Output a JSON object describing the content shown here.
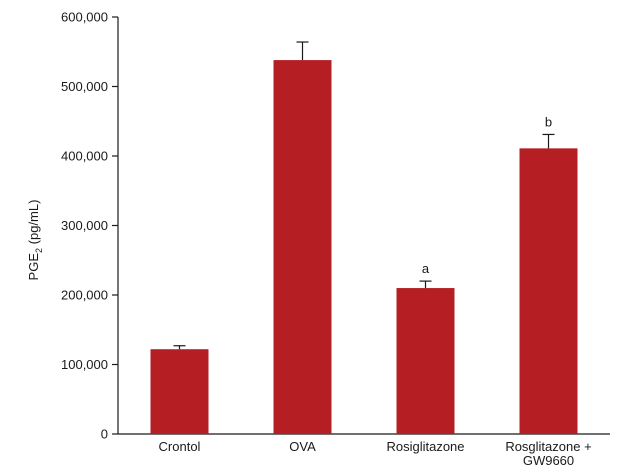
{
  "chart_data": {
    "type": "bar",
    "title": "",
    "xlabel": "",
    "ylabel": {
      "prefix": "PGE",
      "subscript": "2",
      "suffix": " (pg/mL)"
    },
    "ylim": [
      0,
      600000
    ],
    "yticks": [
      0,
      100000,
      200000,
      300000,
      400000,
      500000,
      600000
    ],
    "ytick_labels": [
      "0",
      "100,000",
      "200,000",
      "300,000",
      "400,000",
      "500,000",
      "600,000"
    ],
    "categories": [
      [
        "Crontol"
      ],
      [
        "OVA"
      ],
      [
        "Rosiglitazone"
      ],
      [
        "Rosglitazone +",
        "GW9660"
      ]
    ],
    "values": [
      122000,
      538000,
      210000,
      411000
    ],
    "errors": [
      5000,
      26000,
      10000,
      20000
    ],
    "annotations": [
      "",
      "",
      "a",
      "b"
    ],
    "bar_color": "#b51f24",
    "grid": false,
    "legend": "none"
  }
}
